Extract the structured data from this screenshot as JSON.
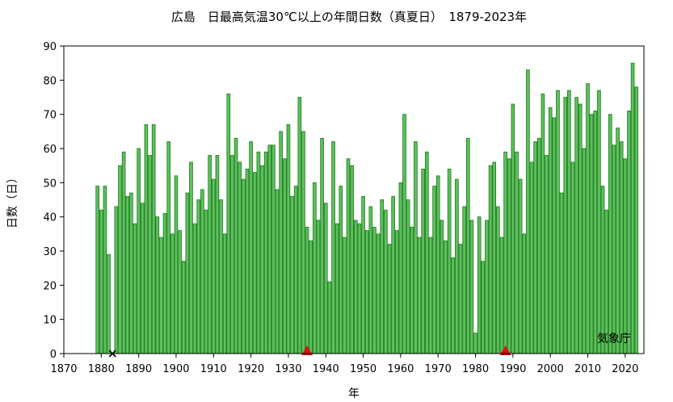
{
  "chart_data": {
    "type": "bar",
    "title": "広島　日最高気温30℃以上の年間日数（真夏日）　1879-2023年",
    "xlabel": "年",
    "ylabel": "日数（日）",
    "credit": "気象庁",
    "xlim": [
      1870,
      2025
    ],
    "ylim": [
      0,
      90
    ],
    "xticks": [
      1870,
      1880,
      1890,
      1900,
      1910,
      1920,
      1930,
      1940,
      1950,
      1960,
      1970,
      1980,
      1990,
      2000,
      2010,
      2020
    ],
    "yticks": [
      0,
      10,
      20,
      30,
      40,
      50,
      60,
      70,
      80,
      90
    ],
    "grid": false,
    "bar_color": "#5dc05d",
    "bar_edge_color": "#1e7a1e",
    "start_year": 1879,
    "end_year": 2023,
    "values": [
      49,
      42,
      49,
      29,
      0,
      43,
      55,
      59,
      46,
      47,
      38,
      60,
      44,
      67,
      58,
      67,
      40,
      34,
      41,
      62,
      35,
      52,
      36,
      27,
      47,
      56,
      38,
      45,
      48,
      42,
      58,
      51,
      58,
      45,
      35,
      76,
      58,
      63,
      56,
      51,
      54,
      62,
      53,
      59,
      55,
      59,
      61,
      61,
      48,
      65,
      57,
      67,
      46,
      49,
      75,
      65,
      37,
      33,
      50,
      39,
      63,
      44,
      21,
      62,
      38,
      49,
      34,
      57,
      55,
      39,
      38,
      46,
      36,
      43,
      37,
      35,
      45,
      42,
      32,
      46,
      36,
      50,
      70,
      45,
      37,
      62,
      34,
      54,
      59,
      34,
      49,
      52,
      39,
      33,
      54,
      28,
      51,
      32,
      43,
      63,
      39,
      6,
      40,
      27,
      39,
      55,
      56,
      43,
      34,
      59,
      57,
      73,
      59,
      51,
      35,
      83,
      56,
      62,
      63,
      76,
      58,
      72,
      69,
      77,
      47,
      75,
      77,
      56,
      75,
      73,
      60,
      79,
      70,
      71,
      77,
      49,
      42,
      70,
      61,
      66,
      62,
      57,
      71,
      85,
      78
    ],
    "markers": [
      {
        "year": 1883,
        "symbol": "×",
        "meaning": ""
      },
      {
        "year": 1935,
        "symbol": "▲",
        "meaning": ""
      },
      {
        "year": 1988,
        "symbol": "▲",
        "meaning": ""
      }
    ],
    "marker_color": "#dd1111"
  }
}
